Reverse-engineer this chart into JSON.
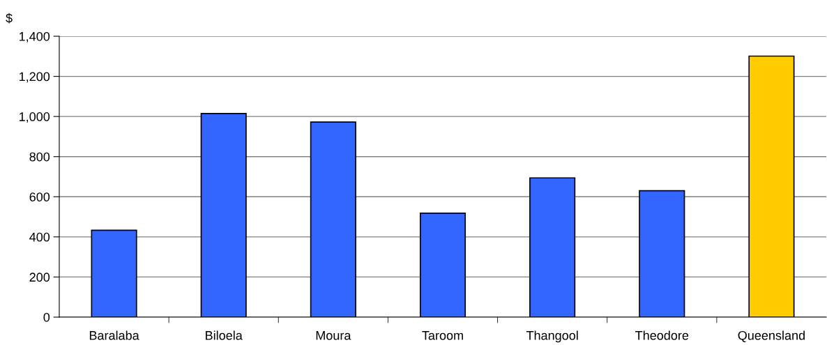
{
  "chart_data": {
    "type": "bar",
    "ylabel": "$",
    "categories": [
      "Baralaba",
      "Biloela",
      "Moura",
      "Taroom",
      "Thangool",
      "Theodore",
      "Queensland"
    ],
    "values": [
      433,
      1015,
      972,
      518,
      694,
      630,
      1301
    ],
    "colors": [
      "#3366ff",
      "#3366ff",
      "#3366ff",
      "#3366ff",
      "#3366ff",
      "#3366ff",
      "#ffcc00"
    ],
    "ylim": [
      0,
      1400
    ],
    "yticks": [
      0,
      200,
      400,
      {
        "value": 600,
        "label": "600"
      },
      800,
      {
        "value": 1000,
        "label": "1,000"
      },
      {
        "value": 1200,
        "label": "1,200"
      },
      {
        "value": 1400,
        "label": "1,400"
      }
    ],
    "grid": "y"
  }
}
